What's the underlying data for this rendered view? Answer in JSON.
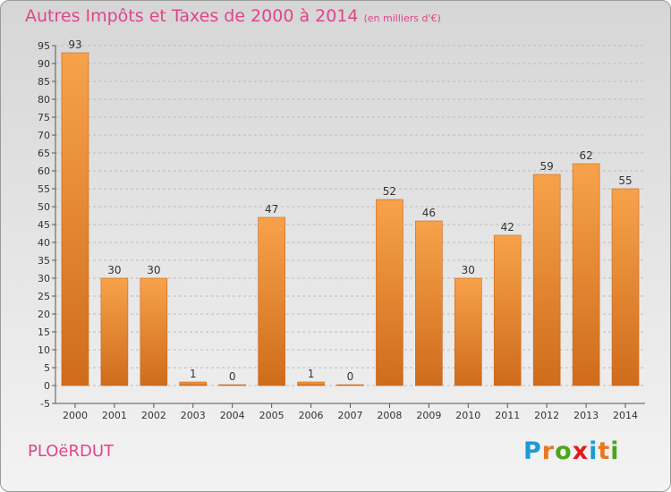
{
  "header": {
    "title": "Autres Impôts et Taxes de 2000 à 2014",
    "subtitle": "(en milliers d'€)"
  },
  "footer": {
    "commune": "PLOëRDUT",
    "logo": {
      "letters": [
        "P",
        "r",
        "o",
        "x",
        "i",
        "t",
        "i"
      ],
      "colors": [
        "#1f9ad6",
        "#e87722",
        "#4aa61c",
        "#e21c1c",
        "#1f9ad6",
        "#e87722",
        "#4aa61c"
      ]
    }
  },
  "colors": {
    "bar": "#f0963a",
    "bar_dark": "#d46f1e",
    "grid": "#bdbdbd",
    "axis": "#555555"
  },
  "chart_data": {
    "type": "bar",
    "title": "Autres Impôts et Taxes de 2000 à 2014",
    "subtitle": "(en milliers d'€)",
    "categories": [
      "2000",
      "2001",
      "2002",
      "2003",
      "2004",
      "2005",
      "2006",
      "2007",
      "2008",
      "2009",
      "2010",
      "2011",
      "2012",
      "2013",
      "2014"
    ],
    "values": [
      93,
      30,
      30,
      1,
      0,
      47,
      1,
      0,
      52,
      46,
      30,
      42,
      59,
      62,
      55
    ],
    "ylim": [
      -5,
      95
    ],
    "ytick_step": 5,
    "grid": true,
    "xlabel": "",
    "ylabel": ""
  }
}
